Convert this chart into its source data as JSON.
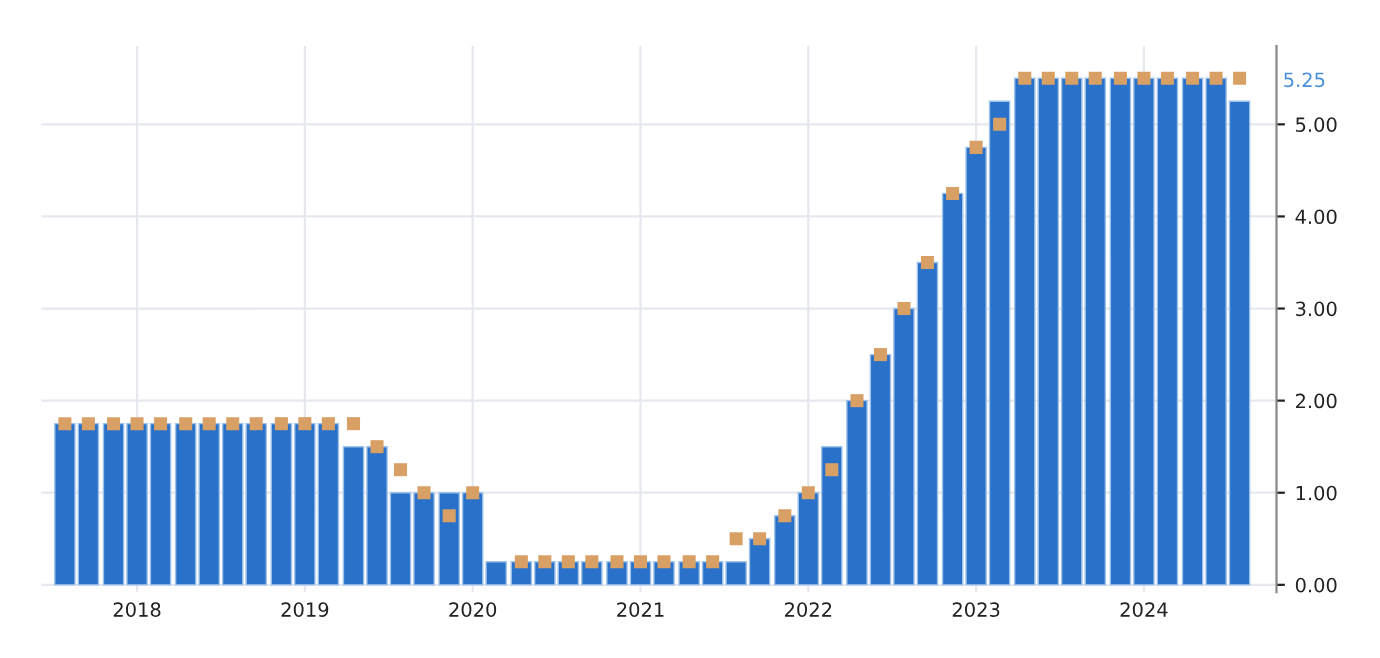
{
  "chart_data": {
    "type": "bar",
    "x": [
      2017.57,
      2017.71,
      2017.86,
      2018.0,
      2018.14,
      2018.29,
      2018.43,
      2018.57,
      2018.71,
      2018.86,
      2019.0,
      2019.14,
      2019.29,
      2019.43,
      2019.57,
      2019.71,
      2019.86,
      2020.0,
      2020.14,
      2020.29,
      2020.43,
      2020.57,
      2020.71,
      2020.86,
      2021.0,
      2021.14,
      2021.29,
      2021.43,
      2021.57,
      2021.71,
      2021.86,
      2022.0,
      2022.14,
      2022.29,
      2022.43,
      2022.57,
      2022.71,
      2022.86,
      2023.0,
      2023.14,
      2023.29,
      2023.43,
      2023.57,
      2023.71,
      2023.86,
      2024.0,
      2024.14,
      2024.29,
      2024.43,
      2024.57
    ],
    "series": [
      {
        "color": "#2a72c9",
        "values": [
          1.75,
          1.75,
          1.75,
          1.75,
          1.75,
          1.75,
          1.75,
          1.75,
          1.75,
          1.75,
          1.75,
          1.75,
          1.5,
          1.5,
          1.0,
          1.0,
          1.0,
          1.0,
          0.25,
          0.25,
          0.25,
          0.25,
          0.25,
          0.25,
          0.25,
          0.25,
          0.25,
          0.25,
          0.25,
          0.5,
          0.75,
          1.0,
          1.5,
          2.0,
          2.5,
          3.0,
          3.5,
          4.25,
          4.75,
          5.25,
          5.5,
          5.5,
          5.5,
          5.5,
          5.5,
          5.5,
          5.5,
          5.5,
          5.5,
          5.25
        ]
      },
      {
        "type": "scatter",
        "marker": "square",
        "color": "#d9a066",
        "values": [
          1.75,
          1.75,
          1.75,
          1.75,
          1.75,
          1.75,
          1.75,
          1.75,
          1.75,
          1.75,
          1.75,
          1.75,
          1.75,
          1.5,
          1.25,
          1.0,
          0.75,
          1.0,
          null,
          0.25,
          0.25,
          0.25,
          0.25,
          0.25,
          0.25,
          0.25,
          0.25,
          0.25,
          0.5,
          0.5,
          0.75,
          1.0,
          1.25,
          2.0,
          2.5,
          3.0,
          3.5,
          4.25,
          4.75,
          5.0,
          5.5,
          5.5,
          5.5,
          5.5,
          5.5,
          5.5,
          5.5,
          5.5,
          5.5,
          5.5
        ]
      }
    ],
    "xlim": [
      2017.43,
      2024.79
    ],
    "xticks": [
      2018,
      2019,
      2020,
      2021,
      2022,
      2023,
      2024
    ],
    "ylim": [
      -0.08,
      5.85
    ],
    "yticks": [
      {
        "value": 0,
        "label": "0.00"
      },
      {
        "value": 1,
        "label": "1.00"
      },
      {
        "value": 2,
        "label": "2.00"
      },
      {
        "value": 3,
        "label": "3.00"
      },
      {
        "value": 4,
        "label": "4.00"
      },
      {
        "value": 5,
        "label": "5.00"
      }
    ],
    "annotations": [
      "5.25"
    ],
    "grid": true
  }
}
